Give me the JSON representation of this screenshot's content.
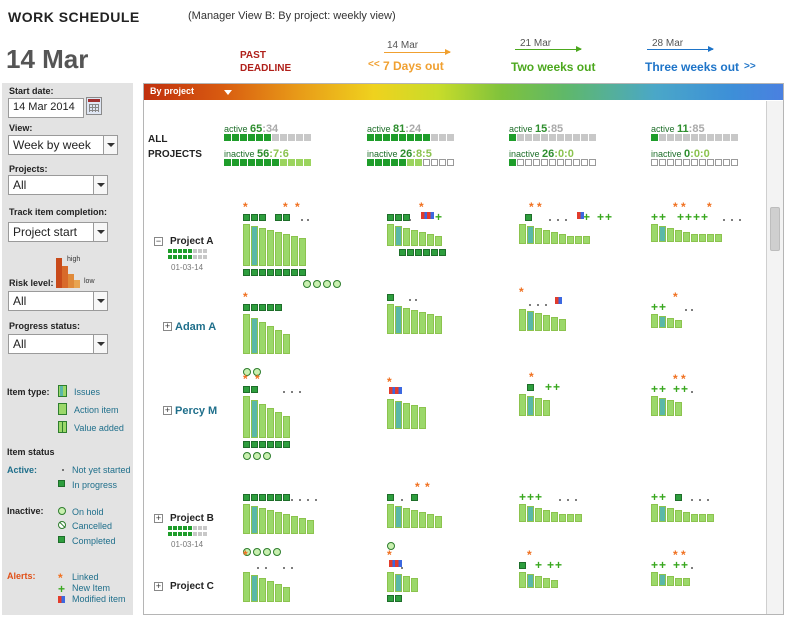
{
  "header": {
    "title": "WORK  SCHEDULE",
    "subtitle": "(Manager View B: By project: weekly view)",
    "current_date": "14 Mar",
    "past_deadline_line1": "PAST",
    "past_deadline_line2": "DEADLINE",
    "horizons": [
      {
        "date": "14 Mar",
        "prefix": "<<",
        "label": "7 Days  out",
        "color": "#f0a030"
      },
      {
        "date": "21 Mar",
        "label": "Two weeks out",
        "color": "#4ca81e"
      },
      {
        "date": "28 Mar",
        "label": "Three weeks out",
        "suffix": ">>",
        "color": "#1e74c8"
      }
    ]
  },
  "sidebar": {
    "start_date_label": "Start date:",
    "start_date_value": "14 Mar 2014",
    "view_label": "View:",
    "view_value": "Week by week",
    "projects_label": "Projects:",
    "projects_value": "All",
    "track_label": "Track item completion:",
    "track_value": "Project start",
    "risk_label": "Risk level:",
    "risk_high": "high",
    "risk_low": "low",
    "risk_value": "All",
    "progress_label": "Progress status:",
    "progress_value": "All",
    "item_type_label": "Item type:",
    "item_types": [
      "Issues",
      "Action item",
      "Value added"
    ],
    "item_status_label": "Item status",
    "active_label": "Active:",
    "active_states": [
      "Not yet started",
      "In progress"
    ],
    "inactive_label": "Inactive:",
    "inactive_states": [
      "On hold",
      "Cancelled",
      "Completed"
    ],
    "alerts_label": "Alerts:",
    "alerts": [
      "Linked",
      "New Item",
      "Modified item"
    ]
  },
  "main": {
    "group_by_label": "By project",
    "all_projects_line1": "ALL",
    "all_projects_line2": "PROJECTS",
    "summary": [
      {
        "active_label": "active",
        "active_a": "65",
        "active_b": ":34",
        "inactive_label": "inactive",
        "inactive_a": "56",
        "inactive_b": ":7:6"
      },
      {
        "active_label": "active",
        "active_a": "81",
        "active_b": ":24",
        "inactive_label": "inactive",
        "inactive_a": "26",
        "inactive_b": ":8:5"
      },
      {
        "active_label": "active",
        "active_a": "15",
        "active_b": ":85",
        "inactive_label": "inactive",
        "inactive_a": "26",
        "inactive_b": ":0:0"
      },
      {
        "active_label": "active",
        "active_a": "11",
        "active_b": ":85",
        "inactive_label": "inactive",
        "inactive_a": "0",
        "inactive_b": ":0:0"
      }
    ],
    "rows": [
      {
        "label": "Project A",
        "date": "01-03-14",
        "expander": "−"
      },
      {
        "label": "Adam A",
        "expander": "+"
      },
      {
        "label": "Percy M",
        "expander": "+"
      },
      {
        "label": "Project B",
        "date": "01-03-14",
        "expander": "+"
      },
      {
        "label": "Project C",
        "expander": "+"
      }
    ]
  }
}
